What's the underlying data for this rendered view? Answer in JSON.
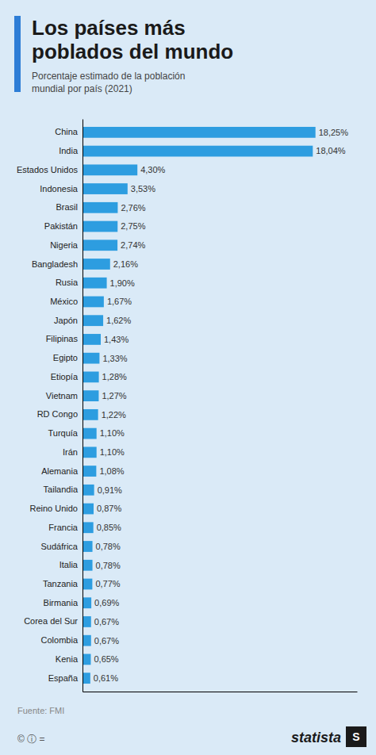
{
  "chart_data": {
    "type": "bar",
    "orientation": "horizontal",
    "title": "Los países más\npoblados del mundo",
    "subtitle": "Porcentaje estimado de la población\nmundial por país (2021)",
    "annotations": [
      "Fuente: FMI",
      "© ⓘ =",
      "statista",
      "S"
    ],
    "categories": [
      "China",
      "India",
      "Estados Unidos",
      "Indonesia",
      "Brasil",
      "Pakistán",
      "Nigeria",
      "Bangladesh",
      "Rusia",
      "México",
      "Japón",
      "Filipinas",
      "Egipto",
      "Etiopía",
      "Vietnam",
      "RD Congo",
      "Turquía",
      "Irán",
      "Alemania",
      "Tailandia",
      "Reino Unido",
      "Francia",
      "Sudáfrica",
      "Italia",
      "Tanzania",
      "Birmania",
      "Corea del Sur",
      "Colombia",
      "Kenia",
      "España"
    ],
    "values": [
      18.25,
      18.04,
      4.3,
      3.53,
      2.76,
      2.75,
      2.74,
      2.16,
      1.9,
      1.67,
      1.62,
      1.43,
      1.33,
      1.28,
      1.27,
      1.22,
      1.1,
      1.1,
      1.08,
      0.91,
      0.87,
      0.85,
      0.78,
      0.78,
      0.77,
      0.69,
      0.67,
      0.67,
      0.65,
      0.61
    ],
    "value_labels": [
      "18,25%",
      "18,04%",
      "4,30%",
      "3,53%",
      "2,76%",
      "2,75%",
      "2,74%",
      "2,16%",
      "1,90%",
      "1,67%",
      "1,62%",
      "1,43%",
      "1,33%",
      "1,28%",
      "1,27%",
      "1,22%",
      "1,10%",
      "1,10%",
      "1,08%",
      "0,91%",
      "0,87%",
      "0,85%",
      "0,78%",
      "0,78%",
      "0,77%",
      "0,69%",
      "0,67%",
      "0,67%",
      "0,65%",
      "0,61%"
    ],
    "color": "#2d9de0",
    "xlim": [
      0,
      21.5
    ],
    "data_labels": true,
    "tick_labels": "y",
    "grid": false
  }
}
